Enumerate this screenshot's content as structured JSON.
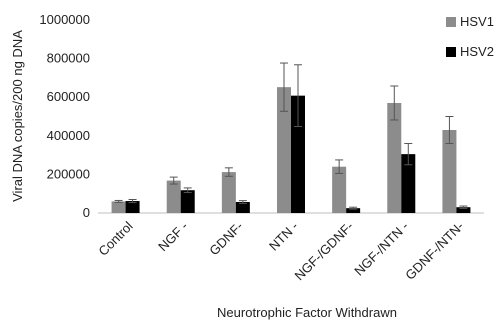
{
  "chart_data": {
    "type": "bar",
    "title": "",
    "xlabel": "Neurotrophic Factor Withdrawn",
    "ylabel": "Viral DNA copies/200 ng DNA",
    "ylim": [
      0,
      1000000
    ],
    "yticks": [
      "0",
      "200000",
      "400000",
      "600000",
      "800000",
      "1000000"
    ],
    "ytick_values": [
      0,
      200000,
      400000,
      600000,
      800000,
      1000000
    ],
    "categories": [
      "Control",
      "NGF -",
      "GDNF-",
      "NTN -",
      "NGF-/GDNF-",
      "NGF-/NTN -",
      "GDNF-/NTN-"
    ],
    "series": [
      {
        "name": "HSV1",
        "color": "#8c8c8c",
        "values": [
          60000,
          168000,
          212000,
          652000,
          240000,
          570000,
          430000
        ],
        "errors": [
          5000,
          18000,
          22000,
          125000,
          35000,
          88000,
          70000
        ]
      },
      {
        "name": "HSV2",
        "color": "#000000",
        "values": [
          62000,
          118000,
          57000,
          608000,
          25000,
          305000,
          30000
        ],
        "errors": [
          8000,
          12000,
          7000,
          160000,
          5000,
          55000,
          6000
        ]
      }
    ],
    "grid": false,
    "error_bars": true,
    "legend": "top-right"
  }
}
